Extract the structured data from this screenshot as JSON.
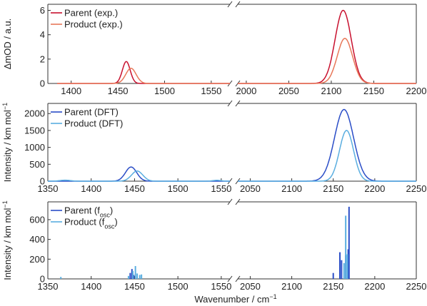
{
  "figure": {
    "xlabel": "Wavenumber / cm",
    "xlabel_sup": "−1"
  },
  "chart_data": [
    {
      "type": "line",
      "ylabel": "ΔmOD / a.u.",
      "ylim": [
        0,
        6.5
      ],
      "yticks": [
        0,
        2,
        4,
        6
      ],
      "left_xlim": [
        1375,
        1570
      ],
      "right_xlim": [
        1990,
        2200
      ],
      "left_xticks": [
        1400,
        1450,
        1500,
        1550
      ],
      "right_xticks": [
        2000,
        2050,
        2100,
        2150,
        2200
      ],
      "legend_position": "top-left",
      "series": [
        {
          "name": "Parent (exp.)",
          "name_sub": "",
          "color": "#c8102e",
          "peaks": [
            {
              "x0": 1459,
              "amp": 1.8,
              "sigma": 4.2
            },
            {
              "x0": 2114,
              "amp": 6.0,
              "sigma": 9.5
            }
          ],
          "segments": [
            [
              1385,
              1570
            ],
            [
              1990,
              2200
            ]
          ]
        },
        {
          "name": "Product (exp.)",
          "name_sub": "",
          "color": "#e8785a",
          "peaks": [
            {
              "x0": 1464,
              "amp": 1.25,
              "sigma": 5.5
            },
            {
              "x0": 2116,
              "amp": 3.7,
              "sigma": 9.0
            }
          ],
          "segments": [
            [
              1385,
              1570
            ],
            [
              1990,
              2200
            ]
          ]
        }
      ]
    },
    {
      "type": "line",
      "ylabel": "Intensity / km mol",
      "ylabel_sup": "−1",
      "ylim": [
        0,
        2300
      ],
      "yticks": [
        0,
        500,
        1000,
        1500,
        2000
      ],
      "left_xlim": [
        1350,
        1560
      ],
      "right_xlim": [
        2035,
        2250
      ],
      "left_xticks": [
        1350,
        1400,
        1450,
        1500,
        1550
      ],
      "right_xticks": [
        2050,
        2100,
        2150,
        2200,
        2250
      ],
      "legend_position": "top-left",
      "series": [
        {
          "name": "Parent (DFT)",
          "name_sub": "",
          "color": "#2a4dc7",
          "peaks": [
            {
              "x0": 1446,
              "amp": 420,
              "sigma": 6.5
            },
            {
              "x0": 2163,
              "amp": 2120,
              "sigma": 11.5
            }
          ],
          "segments": [
            [
              1350,
              1560
            ],
            [
              2035,
              2250
            ]
          ]
        },
        {
          "name": "Product (DFT)",
          "name_sub": "",
          "color": "#5aaee0",
          "peaks": [
            {
              "x0": 1453,
              "amp": 300,
              "sigma": 6.5
            },
            {
              "x0": 2166,
              "amp": 1500,
              "sigma": 8.5
            },
            {
              "x0": 1370,
              "amp": 30,
              "sigma": 6
            },
            {
              "x0": 1545,
              "amp": 25,
              "sigma": 5
            }
          ],
          "segments": [
            [
              1350,
              1560
            ],
            [
              2035,
              2250
            ]
          ]
        }
      ]
    },
    {
      "type": "bar",
      "ylabel": "Intensity / km mol",
      "ylabel_sup": "−1",
      "ylim": [
        0,
        780
      ],
      "yticks": [
        0,
        200,
        400,
        600
      ],
      "left_xlim": [
        1350,
        1560
      ],
      "right_xlim": [
        2035,
        2250
      ],
      "left_xticks": [
        1350,
        1400,
        1450,
        1500,
        1550
      ],
      "right_xticks": [
        2050,
        2100,
        2150,
        2200,
        2250
      ],
      "legend_position": "top-left",
      "series": [
        {
          "name": "Parent (f",
          "name_sub": "osc",
          "name_end": ")",
          "color": "#2a4dc7",
          "sticks": [
            [
              1445,
              60
            ],
            [
              1447,
              100
            ],
            [
              1449,
              40
            ],
            [
              2150,
              60
            ],
            [
              2158,
              270
            ],
            [
              2160,
              190
            ],
            [
              2165,
              240
            ],
            [
              2168,
              300
            ],
            [
              2169,
              730
            ]
          ]
        },
        {
          "name": "Product (f",
          "name_sub": "osc",
          "name_end": ")",
          "color": "#5aaee0",
          "sticks": [
            [
              1365,
              20
            ],
            [
              1443,
              30
            ],
            [
              1448,
              80
            ],
            [
              1451,
              130
            ],
            [
              1453,
              55
            ],
            [
              1456,
              40
            ],
            [
              1458,
              45
            ],
            [
              2163,
              160
            ],
            [
              2165,
              640
            ],
            [
              2167,
              250
            ]
          ]
        }
      ]
    }
  ]
}
